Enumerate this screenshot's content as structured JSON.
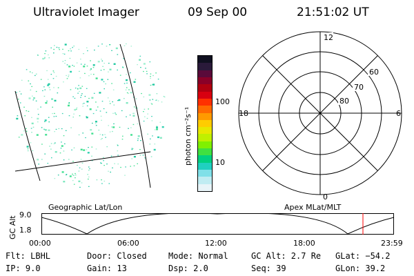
{
  "header": {
    "title": "Ultraviolet Imager",
    "date": "09 Sep 00",
    "time": "21:51:02 UT"
  },
  "colorbar": {
    "label": "photon cm⁻²s⁻¹",
    "ticks": [
      "100",
      "10"
    ],
    "colors": [
      "#101020",
      "#2a1a3a",
      "#5a0a3a",
      "#8a0028",
      "#b00010",
      "#d80010",
      "#ff3000",
      "#ff6a00",
      "#ff9a00",
      "#ffcc00",
      "#e8e800",
      "#c0f000",
      "#80f000",
      "#40e040",
      "#00d080",
      "#20d0c0",
      "#80e0e8",
      "#c0ecf2",
      "#e8f4f8"
    ]
  },
  "polar_plot": {
    "hour_labels": {
      "top": "12",
      "left": "18",
      "right": "6",
      "bottom": "0"
    },
    "lat_labels": [
      "60",
      "70",
      "80"
    ]
  },
  "image_labels": {
    "geographic": "Geographic Lat/Lon",
    "apex": "Apex MLat/MLT"
  },
  "altitude_plot": {
    "ylabel": "GC Alt",
    "ytick_top": "9.0",
    "ytick_bottom": "1.8",
    "xticks": [
      "00:00",
      "06:00",
      "12:00",
      "18:00",
      "23:59"
    ],
    "current_marker_color": "#ff0000"
  },
  "info": {
    "row1": [
      "Flt: LBHL",
      "Door: Closed",
      "Mode: Normal",
      "GC Alt: 2.7 Re",
      "GLat: −54.2"
    ],
    "row2": [
      "IP:  9.0",
      "Gain: 13",
      "Dsp:    2.0",
      "Seq: 39",
      "GLon:  39.2"
    ]
  }
}
